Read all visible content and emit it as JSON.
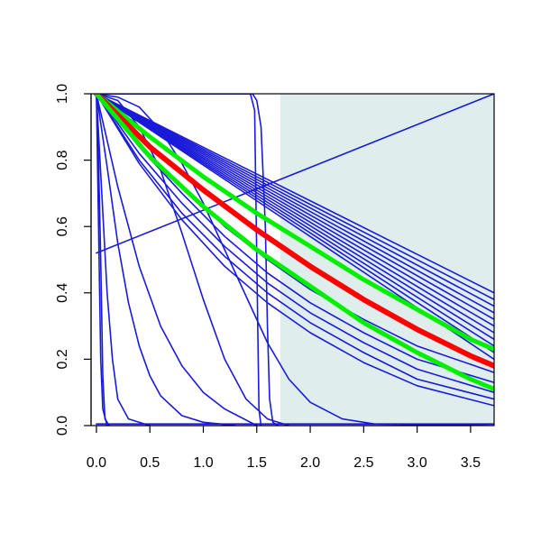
{
  "chart_data": {
    "type": "line",
    "title": "",
    "xlabel": "",
    "ylabel": "",
    "xlim": [
      -0.05,
      3.72
    ],
    "ylim": [
      0.0,
      1.0
    ],
    "grid": false,
    "x_ticks": [
      "0.0",
      "0.5",
      "1.0",
      "1.5",
      "2.0",
      "2.5",
      "3.0",
      "3.5"
    ],
    "x_tick_values": [
      0.0,
      0.5,
      1.0,
      1.5,
      2.0,
      2.5,
      3.0,
      3.5
    ],
    "y_ticks": [
      "0.0",
      "0.2",
      "0.4",
      "0.6",
      "0.8",
      "1.0"
    ],
    "y_tick_values": [
      0.0,
      0.2,
      0.4,
      0.6,
      0.8,
      1.0
    ],
    "shaded_region": {
      "x_from": 1.72,
      "x_to": 3.72,
      "y_from": 0.0,
      "y_to": 1.0,
      "color": "#e0eded"
    },
    "colors": {
      "blue": "#1a1ad9",
      "red": "#ff0000",
      "green": "#00ee00",
      "axis": "#000000"
    },
    "series": [
      {
        "color": "blue",
        "width": 1.6,
        "points": [
          [
            0,
            1
          ],
          [
            0.02,
            0.6
          ],
          [
            0.04,
            0.2
          ],
          [
            0.06,
            0.05
          ],
          [
            0.1,
            0
          ]
        ]
      },
      {
        "color": "blue",
        "width": 1.6,
        "points": [
          [
            0,
            1
          ],
          [
            0.05,
            0.7
          ],
          [
            0.1,
            0.4
          ],
          [
            0.15,
            0.2
          ],
          [
            0.2,
            0.08
          ],
          [
            0.3,
            0.02
          ],
          [
            0.5,
            0
          ]
        ]
      },
      {
        "color": "blue",
        "width": 1.6,
        "points": [
          [
            0,
            1
          ],
          [
            0.1,
            0.78
          ],
          [
            0.2,
            0.55
          ],
          [
            0.3,
            0.37
          ],
          [
            0.4,
            0.24
          ],
          [
            0.5,
            0.15
          ],
          [
            0.6,
            0.09
          ],
          [
            0.8,
            0.03
          ],
          [
            1.0,
            0.01
          ],
          [
            1.3,
            0
          ]
        ]
      },
      {
        "color": "blue",
        "width": 1.6,
        "points": [
          [
            0,
            1
          ],
          [
            0.2,
            0.72
          ],
          [
            0.4,
            0.48
          ],
          [
            0.6,
            0.3
          ],
          [
            0.8,
            0.18
          ],
          [
            1.0,
            0.1
          ],
          [
            1.2,
            0.05
          ],
          [
            1.5,
            0
          ]
        ]
      },
      {
        "color": "blue",
        "width": 1.6,
        "points": [
          [
            0,
            1
          ],
          [
            0.2,
            0.98
          ],
          [
            0.4,
            0.9
          ],
          [
            0.6,
            0.77
          ],
          [
            0.8,
            0.58
          ],
          [
            1.0,
            0.38
          ],
          [
            1.2,
            0.2
          ],
          [
            1.4,
            0.08
          ],
          [
            1.6,
            0.02
          ],
          [
            1.8,
            0
          ]
        ]
      },
      {
        "color": "blue",
        "width": 1.6,
        "points": [
          [
            0,
            1
          ],
          [
            0.2,
            0.99
          ],
          [
            0.4,
            0.96
          ],
          [
            0.6,
            0.89
          ],
          [
            0.8,
            0.79
          ],
          [
            1.0,
            0.67
          ],
          [
            1.2,
            0.53
          ],
          [
            1.4,
            0.39
          ],
          [
            1.6,
            0.25
          ],
          [
            1.8,
            0.14
          ],
          [
            2.0,
            0.07
          ],
          [
            2.3,
            0.02
          ],
          [
            2.6,
            0.005
          ],
          [
            3.72,
            0
          ]
        ]
      },
      {
        "color": "blue",
        "width": 1.6,
        "points": [
          [
            0,
            1
          ],
          [
            1.44,
            1
          ],
          [
            1.48,
            0.95
          ],
          [
            1.5,
            0.5
          ],
          [
            1.52,
            0.05
          ],
          [
            1.54,
            0
          ]
        ]
      },
      {
        "color": "blue",
        "width": 1.6,
        "points": [
          [
            0,
            1
          ],
          [
            1.46,
            1
          ],
          [
            1.5,
            0.98
          ],
          [
            1.54,
            0.9
          ],
          [
            1.58,
            0.6
          ],
          [
            1.6,
            0.3
          ],
          [
            1.62,
            0.08
          ],
          [
            1.65,
            0.01
          ],
          [
            1.7,
            0
          ]
        ]
      },
      {
        "color": "blue",
        "width": 1.6,
        "points": [
          [
            0,
            0.52
          ],
          [
            3.72,
            1
          ]
        ]
      },
      {
        "color": "blue",
        "width": 1.6,
        "points": [
          [
            0,
            1
          ],
          [
            3.72,
            0.4
          ]
        ]
      },
      {
        "color": "blue",
        "width": 1.6,
        "points": [
          [
            0,
            1
          ],
          [
            3.72,
            0.38
          ]
        ]
      },
      {
        "color": "blue",
        "width": 1.6,
        "points": [
          [
            0,
            1
          ],
          [
            3.72,
            0.36
          ]
        ]
      },
      {
        "color": "blue",
        "width": 1.6,
        "points": [
          [
            0,
            1
          ],
          [
            3.72,
            0.34
          ]
        ]
      },
      {
        "color": "blue",
        "width": 1.6,
        "points": [
          [
            0,
            1
          ],
          [
            3.72,
            0.32
          ]
        ]
      },
      {
        "color": "blue",
        "width": 1.6,
        "points": [
          [
            0,
            1
          ],
          [
            3.72,
            0.3
          ]
        ]
      },
      {
        "color": "blue",
        "width": 1.6,
        "points": [
          [
            0,
            1
          ],
          [
            3.72,
            0.28
          ]
        ]
      },
      {
        "color": "blue",
        "width": 1.6,
        "points": [
          [
            0,
            1
          ],
          [
            3.72,
            0.26
          ]
        ]
      },
      {
        "color": "blue",
        "width": 1.6,
        "points": [
          [
            0,
            1
          ],
          [
            3.72,
            0.24
          ]
        ]
      },
      {
        "color": "blue",
        "width": 1.6,
        "points": [
          [
            0,
            1
          ],
          [
            3.72,
            0.22
          ]
        ]
      },
      {
        "color": "blue",
        "width": 1.6,
        "points": [
          [
            0,
            1
          ],
          [
            3.72,
            0.2
          ]
        ]
      },
      {
        "color": "blue",
        "width": 1.6,
        "points": [
          [
            0,
            1
          ],
          [
            0.4,
            0.85
          ],
          [
            0.8,
            0.72
          ],
          [
            1.2,
            0.6
          ],
          [
            1.6,
            0.5
          ],
          [
            2.0,
            0.41
          ],
          [
            2.5,
            0.32
          ],
          [
            3.0,
            0.24
          ],
          [
            3.72,
            0.16
          ]
        ]
      },
      {
        "color": "blue",
        "width": 1.6,
        "points": [
          [
            0,
            1
          ],
          [
            0.4,
            0.84
          ],
          [
            0.8,
            0.7
          ],
          [
            1.2,
            0.57
          ],
          [
            1.6,
            0.46
          ],
          [
            2.0,
            0.37
          ],
          [
            2.5,
            0.28
          ],
          [
            3.0,
            0.2
          ],
          [
            3.72,
            0.13
          ]
        ]
      },
      {
        "color": "blue",
        "width": 1.6,
        "points": [
          [
            0,
            1
          ],
          [
            0.4,
            0.82
          ],
          [
            0.8,
            0.67
          ],
          [
            1.2,
            0.54
          ],
          [
            1.6,
            0.43
          ],
          [
            2.0,
            0.34
          ],
          [
            2.5,
            0.25
          ],
          [
            3.0,
            0.17
          ],
          [
            3.72,
            0.1
          ]
        ]
      },
      {
        "color": "blue",
        "width": 1.6,
        "points": [
          [
            0,
            1
          ],
          [
            0.4,
            0.8
          ],
          [
            0.8,
            0.64
          ],
          [
            1.2,
            0.51
          ],
          [
            1.6,
            0.4
          ],
          [
            2.0,
            0.31
          ],
          [
            2.5,
            0.22
          ],
          [
            3.0,
            0.14
          ],
          [
            3.72,
            0.08
          ]
        ]
      },
      {
        "color": "blue",
        "width": 1.6,
        "points": [
          [
            0,
            1
          ],
          [
            0.4,
            0.79
          ],
          [
            0.8,
            0.62
          ],
          [
            1.2,
            0.48
          ],
          [
            1.6,
            0.37
          ],
          [
            2.0,
            0.28
          ],
          [
            2.5,
            0.19
          ],
          [
            3.0,
            0.12
          ],
          [
            3.72,
            0.06
          ]
        ]
      },
      {
        "color": "blue",
        "width": 1.6,
        "points": [
          [
            0,
            1
          ],
          [
            0.02,
            0.8
          ],
          [
            0.04,
            0.5
          ],
          [
            0.06,
            0.15
          ],
          [
            0.08,
            0.02
          ],
          [
            0.12,
            0
          ]
        ]
      },
      {
        "color": "blue",
        "width": 1.6,
        "points": [
          [
            0,
            0.005
          ],
          [
            3.72,
            0.005
          ]
        ]
      },
      {
        "color": "green",
        "width": 5,
        "points": [
          [
            0,
            1
          ],
          [
            0.5,
            0.87
          ],
          [
            1.0,
            0.75
          ],
          [
            1.5,
            0.64
          ],
          [
            2.0,
            0.54
          ],
          [
            2.5,
            0.44
          ],
          [
            3.0,
            0.35
          ],
          [
            3.5,
            0.26
          ],
          [
            3.72,
            0.23
          ]
        ]
      },
      {
        "color": "red",
        "width": 6,
        "points": [
          [
            0,
            1
          ],
          [
            0.5,
            0.84
          ],
          [
            1.0,
            0.71
          ],
          [
            1.5,
            0.59
          ],
          [
            2.0,
            0.48
          ],
          [
            2.5,
            0.38
          ],
          [
            3.0,
            0.29
          ],
          [
            3.5,
            0.21
          ],
          [
            3.72,
            0.18
          ]
        ]
      },
      {
        "color": "green",
        "width": 5,
        "points": [
          [
            0,
            1
          ],
          [
            0.5,
            0.81
          ],
          [
            1.0,
            0.66
          ],
          [
            1.5,
            0.53
          ],
          [
            2.0,
            0.42
          ],
          [
            2.5,
            0.31
          ],
          [
            3.0,
            0.22
          ],
          [
            3.5,
            0.14
          ],
          [
            3.72,
            0.11
          ]
        ]
      }
    ]
  }
}
